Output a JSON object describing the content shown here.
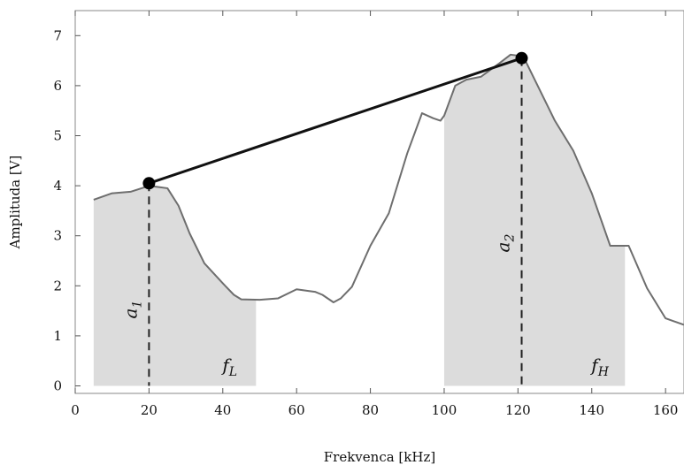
{
  "chart_data": {
    "type": "line",
    "title": "",
    "xlabel": "Frekvenca [kHz]",
    "ylabel": "Amplituda [V]",
    "xlim": [
      0,
      165
    ],
    "ylim": [
      -0.15,
      7.5
    ],
    "xticks": [
      0,
      20,
      40,
      60,
      80,
      100,
      120,
      140,
      160
    ],
    "yticks": [
      0,
      1,
      2,
      3,
      4,
      5,
      6,
      7
    ],
    "grid": false,
    "series": [
      {
        "x": [
          5,
          10,
          15,
          18,
          20,
          22,
          25,
          28,
          31,
          35,
          40,
          43,
          45,
          50,
          55,
          60,
          63,
          65,
          67,
          70,
          72,
          75,
          80,
          85,
          90,
          94,
          97,
          99,
          100,
          103,
          106,
          110,
          115,
          118,
          120,
          122,
          125,
          130,
          135,
          140,
          145,
          150,
          155,
          160,
          165
        ],
        "y": [
          3.72,
          3.85,
          3.88,
          3.95,
          4.0,
          3.98,
          3.95,
          3.6,
          3.05,
          2.45,
          2.05,
          1.82,
          1.73,
          1.72,
          1.75,
          1.93,
          1.9,
          1.88,
          1.82,
          1.67,
          1.75,
          1.98,
          2.8,
          3.45,
          4.65,
          5.45,
          5.35,
          5.3,
          5.4,
          6.0,
          6.12,
          6.18,
          6.45,
          6.62,
          6.6,
          6.5,
          6.05,
          5.3,
          4.7,
          3.85,
          2.8,
          2.8,
          1.95,
          1.35,
          1.22
        ]
      }
    ],
    "shaded_bands": [
      {
        "x_start": 5,
        "x_end": 49,
        "label": "f",
        "label_sub": "L"
      },
      {
        "x_start": 100,
        "x_end": 149,
        "label": "f",
        "label_sub": "H"
      }
    ],
    "markers": [
      {
        "x": 20,
        "y": 4.05,
        "label": "a",
        "label_sub": "1"
      },
      {
        "x": 121,
        "y": 6.55,
        "label": "a",
        "label_sub": "2"
      }
    ],
    "connector_line": {
      "from": [
        20,
        4.05
      ],
      "to": [
        121,
        6.55
      ]
    }
  },
  "colors": {
    "curve": "#6e6e6e",
    "fill": "#dcdcdc",
    "connector": "#111111",
    "marker": "#000000",
    "frame": "#888888"
  }
}
